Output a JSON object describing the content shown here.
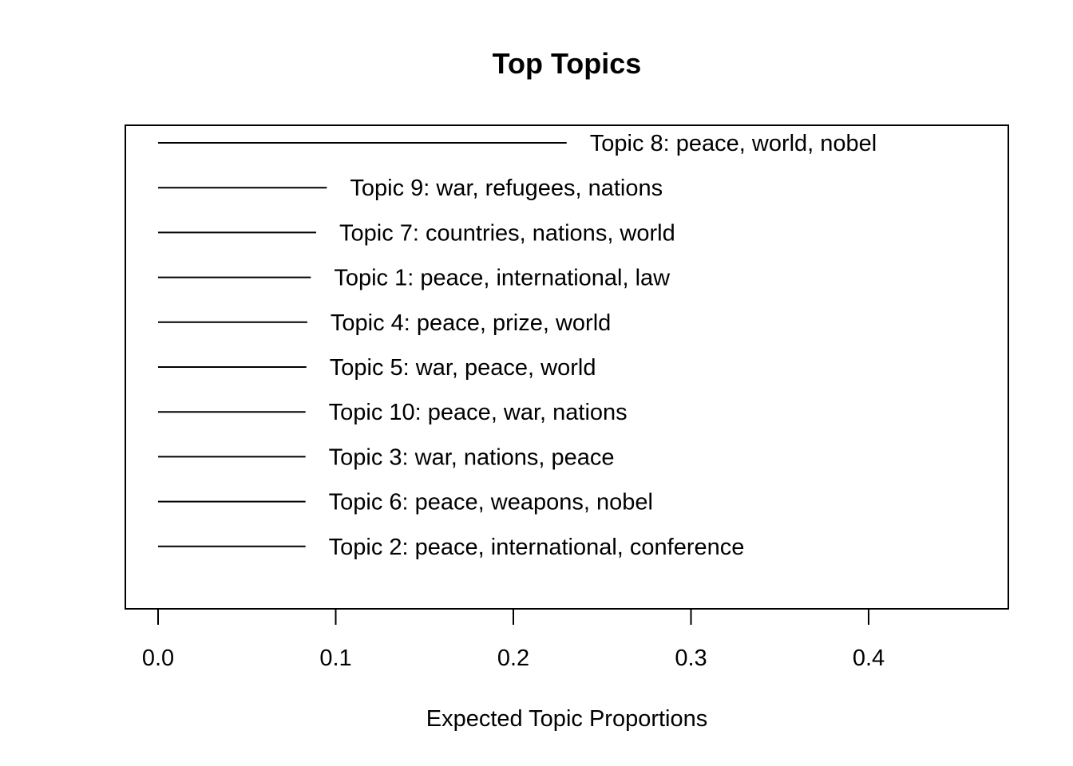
{
  "chart_data": {
    "type": "bar",
    "title": "Top Topics",
    "xlabel": "Expected Topic Proportions",
    "ylabel": "",
    "xlim": [
      0,
      0.48
    ],
    "x_ticks": [
      "0.0",
      "0.1",
      "0.2",
      "0.3",
      "0.4"
    ],
    "x_tick_values": [
      0,
      0.1,
      0.2,
      0.3,
      0.4
    ],
    "orientation": "horizontal",
    "grid": false,
    "categories": [
      "Topic 8: peace, world, nobel",
      "Topic 9: war, refugees, nations",
      "Topic 7: countries, nations, world",
      "Topic 1: peace, international, law",
      "Topic 4: peace, prize, world",
      "Topic 5: war, peace, world",
      "Topic 10: peace, war, nations",
      "Topic 3: war, nations, peace",
      "Topic 6: peace, weapons, nobel",
      "Topic 2: peace, international, conference"
    ],
    "values": [
      0.23,
      0.095,
      0.089,
      0.086,
      0.084,
      0.0835,
      0.083,
      0.083,
      0.083,
      0.083
    ]
  }
}
